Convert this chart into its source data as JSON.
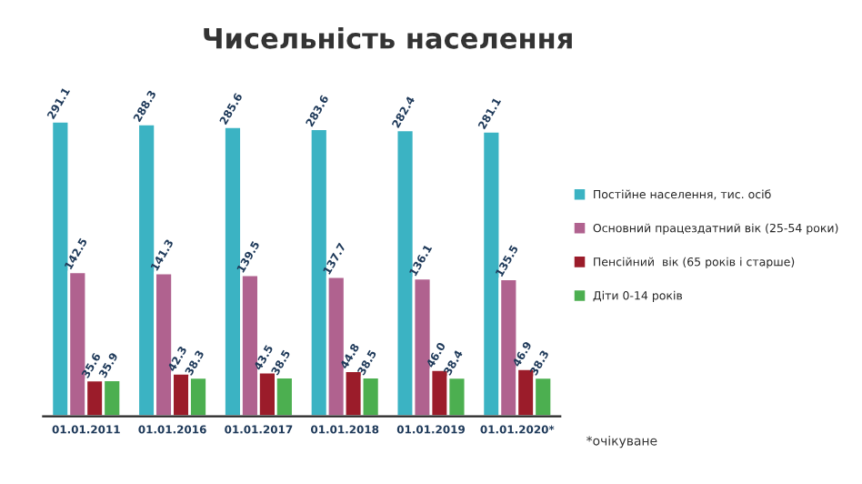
{
  "chart_data": {
    "type": "bar",
    "title": "Чисельність населення",
    "categories": [
      "01.01.2011",
      "01.01.2016",
      "01.01.2017",
      "01.01.2018",
      "01.01.2019",
      "01.01.2020*"
    ],
    "series": [
      {
        "name": "Постійне населення, тис. осіб",
        "color": "#3bb3c3",
        "values": [
          291.1,
          288.3,
          285.6,
          283.6,
          282.4,
          281.1
        ]
      },
      {
        "name": "Основний працездатний вік (25-54 роки)",
        "color": "#b0628f",
        "values": [
          142.5,
          141.3,
          139.5,
          137.7,
          136.1,
          135.5
        ]
      },
      {
        "name": "Пенсійний  вік (65 років і старше)",
        "color": "#9b1c2a",
        "values": [
          35.6,
          42.3,
          43.5,
          44.8,
          46.0,
          46.9
        ],
        "value_labels": [
          "35.6",
          "42.3",
          "43.5",
          "44.8",
          "46.0",
          "46.9"
        ]
      },
      {
        "name": "Діти 0-14 років",
        "color": "#4caf50",
        "values": [
          35.9,
          38.3,
          38.5,
          38.5,
          38.4,
          38.3
        ]
      }
    ],
    "data_labels": true,
    "legend": "right",
    "grid": false,
    "annotations": [
      "*очікуване"
    ]
  }
}
